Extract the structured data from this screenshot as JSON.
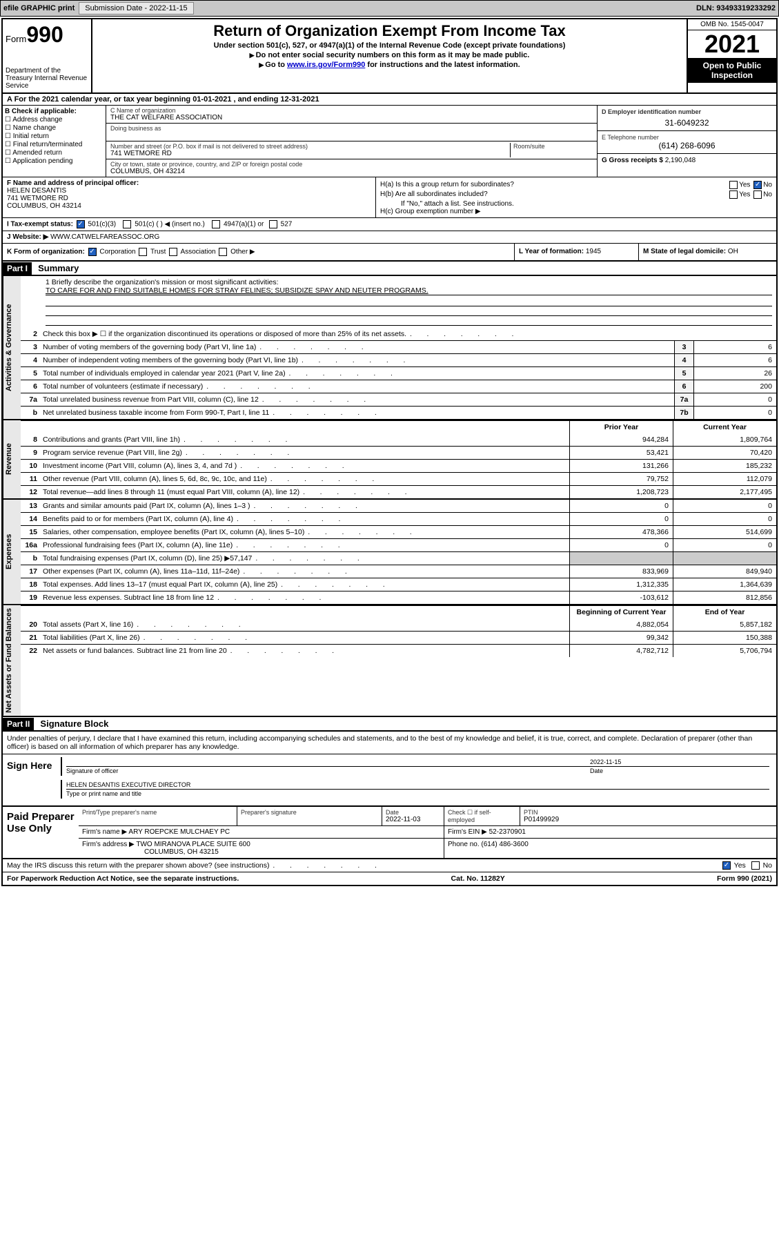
{
  "toolbar": {
    "efile": "efile GRAPHIC print",
    "submission_label": "Submission Date - 2022-11-15",
    "dln": "DLN: 93493319233292"
  },
  "header": {
    "form_word": "Form",
    "form_num": "990",
    "title": "Return of Organization Exempt From Income Tax",
    "sub1": "Under section 501(c), 527, or 4947(a)(1) of the Internal Revenue Code (except private foundations)",
    "sub2": "Do not enter social security numbers on this form as it may be made public.",
    "sub3_pre": "Go to ",
    "sub3_link": "www.irs.gov/Form990",
    "sub3_post": " for instructions and the latest information.",
    "dept": "Department of the Treasury\nInternal Revenue Service",
    "omb": "OMB No. 1545-0047",
    "year": "2021",
    "inspection": "Open to Public Inspection"
  },
  "rowA": "A For the 2021 calendar year, or tax year beginning 01-01-2021    , and ending 12-31-2021",
  "colB": {
    "hdr": "B Check if applicable:",
    "items": [
      "Address change",
      "Name change",
      "Initial return",
      "Final return/terminated",
      "Amended return",
      "Application pending"
    ]
  },
  "colC": {
    "name_label": "C Name of organization",
    "name": "THE CAT WELFARE ASSOCIATION",
    "dba_label": "Doing business as",
    "addr_label": "Number and street (or P.O. box if mail is not delivered to street address)",
    "room_label": "Room/suite",
    "addr": "741 WETMORE RD",
    "city_label": "City or town, state or province, country, and ZIP or foreign postal code",
    "city": "COLUMBUS, OH  43214"
  },
  "colD": {
    "ein_label": "D Employer identification number",
    "ein": "31-6049232",
    "phone_label": "E Telephone number",
    "phone": "(614) 268-6096",
    "gross_label": "G Gross receipts $",
    "gross": "2,190,048"
  },
  "sectF": {
    "label": "F Name and address of principal officer:",
    "name": "HELEN DESANTIS",
    "addr1": "741 WETMORE RD",
    "addr2": "COLUMBUS, OH  43214"
  },
  "sectH": {
    "ha": "H(a)  Is this a group return for subordinates?",
    "hb": "H(b)  Are all subordinates included?",
    "hb_note": "If \"No,\" attach a list. See instructions.",
    "hc": "H(c)  Group exemption number ▶",
    "yes": "Yes",
    "no": "No"
  },
  "sectI": {
    "label": "I   Tax-exempt status:",
    "o1": "501(c)(3)",
    "o2": "501(c) (  ) ◀ (insert no.)",
    "o3": "4947(a)(1) or",
    "o4": "527"
  },
  "sectJ": {
    "label": "J   Website: ▶",
    "value": "WWW.CATWELFAREASSOC.ORG"
  },
  "sectK": {
    "label": "K Form of organization:",
    "o1": "Corporation",
    "o2": "Trust",
    "o3": "Association",
    "o4": "Other ▶"
  },
  "sectL": {
    "label": "L Year of formation:",
    "value": "1945"
  },
  "sectM": {
    "label": "M State of legal domicile:",
    "value": "OH"
  },
  "part1": {
    "hdr": "Part I",
    "title": "Summary"
  },
  "vtabs": {
    "gov": "Activities & Governance",
    "rev": "Revenue",
    "exp": "Expenses",
    "net": "Net Assets or Fund Balances"
  },
  "mission": {
    "q": "1   Briefly describe the organization's mission or most significant activities:",
    "text": "TO CARE FOR AND FIND SUITABLE HOMES FOR STRAY FELINES; SUBSIDIZE SPAY AND NEUTER PROGRAMS."
  },
  "gov_lines": [
    {
      "n": "2",
      "d": "Check this box ▶ ☐  if the organization discontinued its operations or disposed of more than 25% of its net assets.",
      "box": "",
      "v": ""
    },
    {
      "n": "3",
      "d": "Number of voting members of the governing body (Part VI, line 1a)",
      "box": "3",
      "v": "6"
    },
    {
      "n": "4",
      "d": "Number of independent voting members of the governing body (Part VI, line 1b)",
      "box": "4",
      "v": "6"
    },
    {
      "n": "5",
      "d": "Total number of individuals employed in calendar year 2021 (Part V, line 2a)",
      "box": "5",
      "v": "26"
    },
    {
      "n": "6",
      "d": "Total number of volunteers (estimate if necessary)",
      "box": "6",
      "v": "200"
    },
    {
      "n": "7a",
      "d": "Total unrelated business revenue from Part VIII, column (C), line 12",
      "box": "7a",
      "v": "0"
    },
    {
      "n": "b",
      "d": "Net unrelated business taxable income from Form 990-T, Part I, line 11",
      "box": "7b",
      "v": "0"
    }
  ],
  "twocol_hdr": {
    "prior": "Prior Year",
    "current": "Current Year"
  },
  "rev_lines": [
    {
      "n": "8",
      "d": "Contributions and grants (Part VIII, line 1h)",
      "p": "944,284",
      "c": "1,809,764"
    },
    {
      "n": "9",
      "d": "Program service revenue (Part VIII, line 2g)",
      "p": "53,421",
      "c": "70,420"
    },
    {
      "n": "10",
      "d": "Investment income (Part VIII, column (A), lines 3, 4, and 7d )",
      "p": "131,266",
      "c": "185,232"
    },
    {
      "n": "11",
      "d": "Other revenue (Part VIII, column (A), lines 5, 6d, 8c, 9c, 10c, and 11e)",
      "p": "79,752",
      "c": "112,079"
    },
    {
      "n": "12",
      "d": "Total revenue—add lines 8 through 11 (must equal Part VIII, column (A), line 12)",
      "p": "1,208,723",
      "c": "2,177,495"
    }
  ],
  "exp_lines": [
    {
      "n": "13",
      "d": "Grants and similar amounts paid (Part IX, column (A), lines 1–3 )",
      "p": "0",
      "c": "0"
    },
    {
      "n": "14",
      "d": "Benefits paid to or for members (Part IX, column (A), line 4)",
      "p": "0",
      "c": "0"
    },
    {
      "n": "15",
      "d": "Salaries, other compensation, employee benefits (Part IX, column (A), lines 5–10)",
      "p": "478,366",
      "c": "514,699"
    },
    {
      "n": "16a",
      "d": "Professional fundraising fees (Part IX, column (A), line 11e)",
      "p": "0",
      "c": "0"
    },
    {
      "n": "b",
      "d": "Total fundraising expenses (Part IX, column (D), line 25) ▶57,147",
      "p": "",
      "c": ""
    },
    {
      "n": "17",
      "d": "Other expenses (Part IX, column (A), lines 11a–11d, 11f–24e)",
      "p": "833,969",
      "c": "849,940"
    },
    {
      "n": "18",
      "d": "Total expenses. Add lines 13–17 (must equal Part IX, column (A), line 25)",
      "p": "1,312,335",
      "c": "1,364,639"
    },
    {
      "n": "19",
      "d": "Revenue less expenses. Subtract line 18 from line 12",
      "p": "-103,612",
      "c": "812,856"
    }
  ],
  "net_hdr": {
    "begin": "Beginning of Current Year",
    "end": "End of Year"
  },
  "net_lines": [
    {
      "n": "20",
      "d": "Total assets (Part X, line 16)",
      "p": "4,882,054",
      "c": "5,857,182"
    },
    {
      "n": "21",
      "d": "Total liabilities (Part X, line 26)",
      "p": "99,342",
      "c": "150,388"
    },
    {
      "n": "22",
      "d": "Net assets or fund balances. Subtract line 21 from line 20",
      "p": "4,782,712",
      "c": "5,706,794"
    }
  ],
  "part2": {
    "hdr": "Part II",
    "title": "Signature Block"
  },
  "penalties": "Under penalties of perjury, I declare that I have examined this return, including accompanying schedules and statements, and to the best of my knowledge and belief, it is true, correct, and complete. Declaration of preparer (other than officer) is based on all information of which preparer has any knowledge.",
  "sign": {
    "label": "Sign Here",
    "sig_officer_label": "Signature of officer",
    "date": "2022-11-15",
    "date_label": "Date",
    "name": "HELEN DESANTIS  EXECUTIVE DIRECTOR",
    "name_label": "Type or print name and title"
  },
  "preparer": {
    "label": "Paid Preparer Use Only",
    "h1": "Print/Type preparer's name",
    "h2": "Preparer's signature",
    "h3": "Date",
    "date": "2022-11-03",
    "h4": "Check ☐ if self-employed",
    "h5": "PTIN",
    "ptin": "P01499929",
    "firm_name_label": "Firm's name      ▶",
    "firm_name": "ARY ROEPCKE MULCHAEY PC",
    "firm_ein_label": "Firm's EIN ▶",
    "firm_ein": "52-2370901",
    "firm_addr_label": "Firm's address ▶",
    "firm_addr1": "TWO MIRANOVA PLACE SUITE 600",
    "firm_addr2": "COLUMBUS, OH  43215",
    "phone_label": "Phone no.",
    "phone": "(614) 486-3600"
  },
  "footer": {
    "discuss": "May the IRS discuss this return with the preparer shown above? (see instructions)",
    "yes": "Yes",
    "no": "No",
    "paperwork": "For Paperwork Reduction Act Notice, see the separate instructions.",
    "cat": "Cat. No. 11282Y",
    "formref": "Form 990 (2021)"
  }
}
